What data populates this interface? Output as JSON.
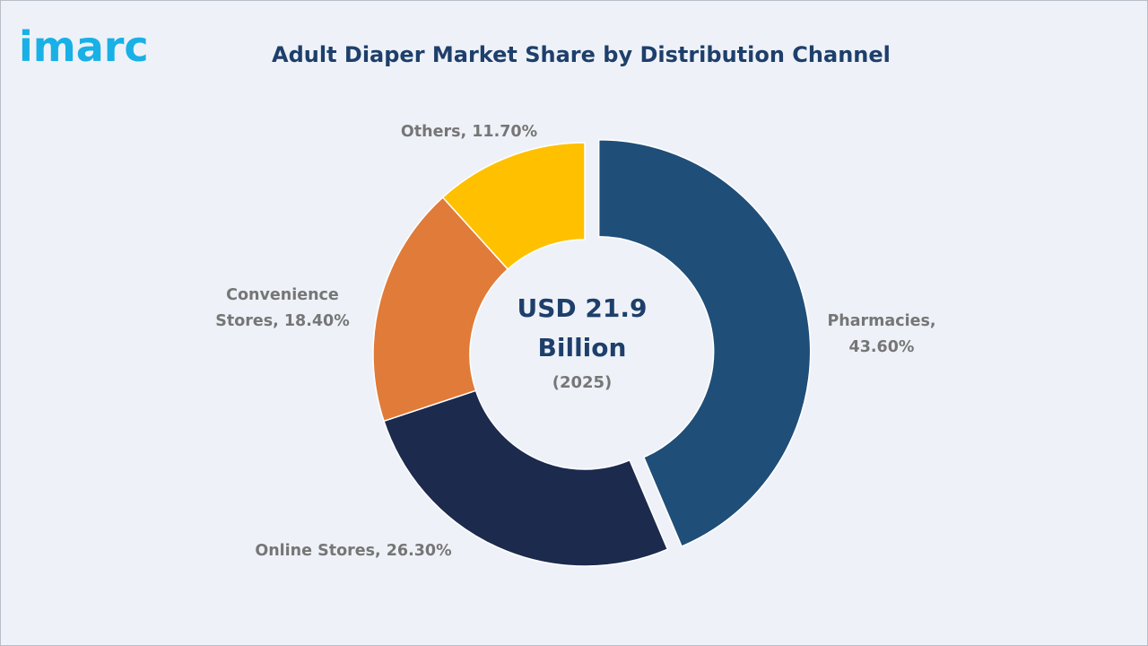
{
  "brand": {
    "logo_text": "imarc"
  },
  "chart_data": {
    "type": "pie",
    "title": "Adult Diaper Market Share by Distribution Channel",
    "center_text": {
      "line1": "USD 21.9",
      "line2": "Billion",
      "line3": "(2025)"
    },
    "unit": "%",
    "slices": [
      {
        "name": "Pharmacies",
        "value": 43.6,
        "label_lines": [
          "Pharmacies,",
          "43.60%"
        ],
        "color": "#1f4e78",
        "exploded": true
      },
      {
        "name": "Online Stores",
        "value": 26.3,
        "label_lines": [
          "Online Stores, 26.30%"
        ],
        "color": "#1c2a4d",
        "exploded": false
      },
      {
        "name": "Convenience Stores",
        "value": 18.4,
        "label_lines": [
          "Convenience",
          "Stores, 18.40%"
        ],
        "color": "#e07b39",
        "exploded": false
      },
      {
        "name": "Others",
        "value": 11.7,
        "label_lines": [
          "Others, 11.70%"
        ],
        "color": "#ffc000",
        "exploded": false
      }
    ]
  },
  "colors": {
    "background": "#eef2f8",
    "title": "#1e3f6b",
    "logo": "#19b0e6",
    "label": "#767676"
  }
}
